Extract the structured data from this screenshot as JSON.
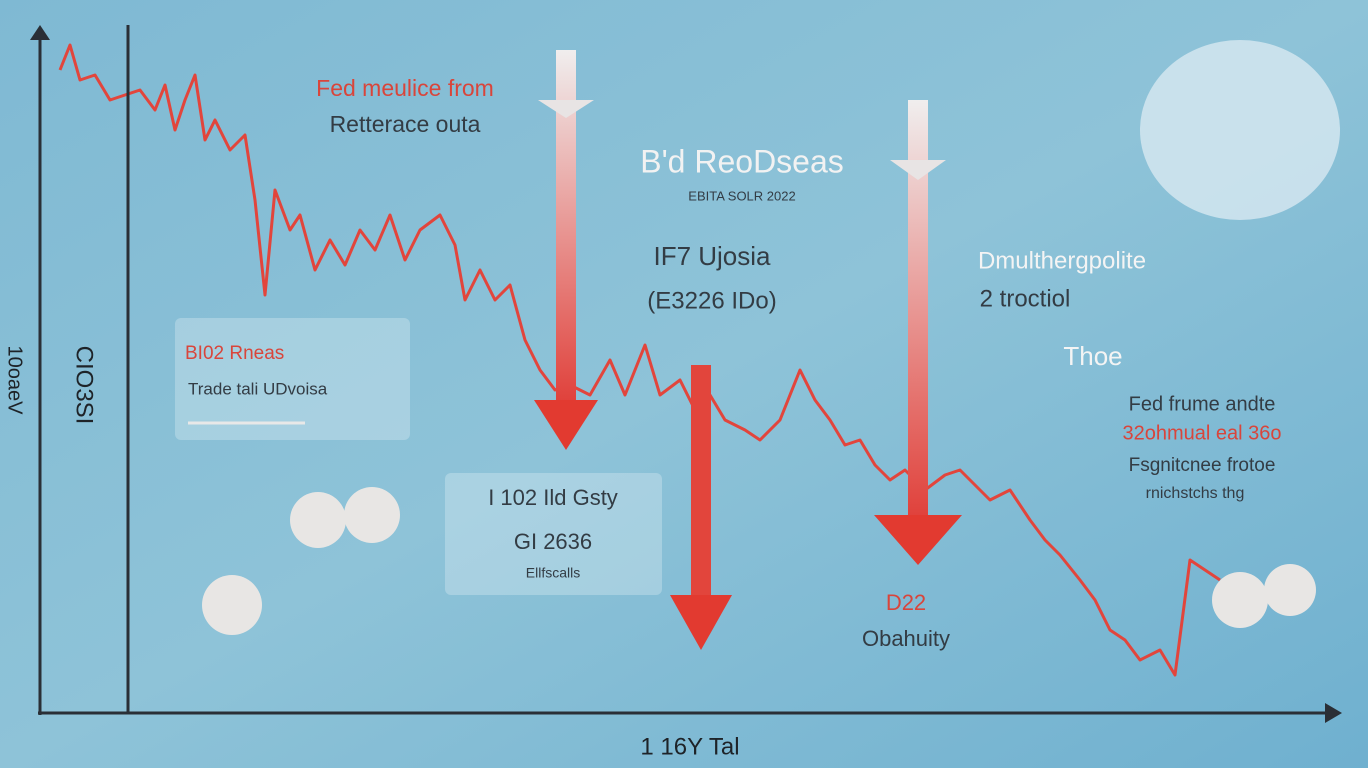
{
  "header": {
    "line1": "Fed meulice from",
    "line2": "Retterace outa"
  },
  "center_block": {
    "title": "B'd ReoDseas",
    "subtitle": "EBITA SOLR 2022",
    "line1": "IF7 Ujosia",
    "line2": "(E3226 IDo)"
  },
  "right_block": {
    "line1": "Dmulthergpolite",
    "line2": "2 troctiol",
    "line3": "Thoe"
  },
  "right_note": {
    "line1": "Fed frume andte",
    "line2": "32ohmual eal 36o",
    "line3": "Fsgnitcnee frotoe",
    "line4": "rnichstchs thg"
  },
  "left_box": {
    "title": "BI02 Rneas",
    "text": "Trade tali UDvoisa"
  },
  "middle_box": {
    "line1": "I 102 Ild Gsty",
    "line2": "GI 2636",
    "line3": "Ellfscalls"
  },
  "bottom_label": {
    "line1": "D22",
    "line2": "Obahuity"
  },
  "axes": {
    "x_label": "1 16Y Tal",
    "y_label_outer": "10oaeV",
    "y_label_inner": "CIO3SI"
  }
}
